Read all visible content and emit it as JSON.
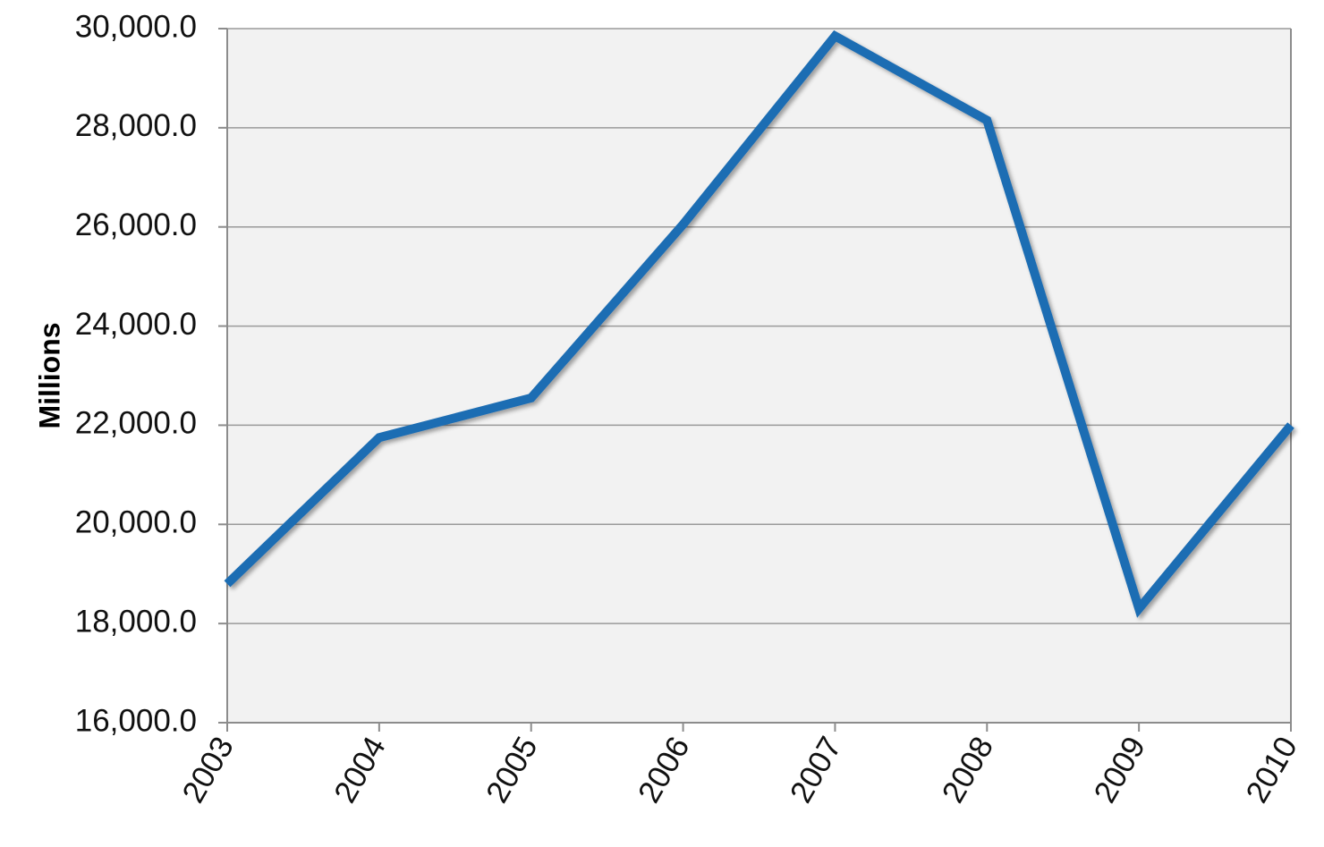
{
  "chart_data": {
    "type": "line",
    "title": "",
    "xlabel": "",
    "ylabel": "Millions",
    "x": [
      "2003",
      "2004",
      "2005",
      "2006",
      "2007",
      "2008",
      "2009",
      "2010"
    ],
    "series": [
      {
        "values": [
          18800,
          21750,
          22550,
          26050,
          29850,
          28150,
          18300,
          22000
        ]
      }
    ],
    "y_ticks": [
      "16,000.0",
      "18,000.0",
      "20,000.0",
      "22,000.0",
      "24,000.0",
      "26,000.0",
      "28,000.0",
      "30,000.0"
    ],
    "ylim": [
      16000,
      30000
    ],
    "grid": true,
    "legend": "none",
    "colors": {
      "line": "#1f6db3",
      "plot_background": "#f2f2f2",
      "gridline": "#9a9a9a",
      "axis": "#8c8c8c"
    }
  }
}
